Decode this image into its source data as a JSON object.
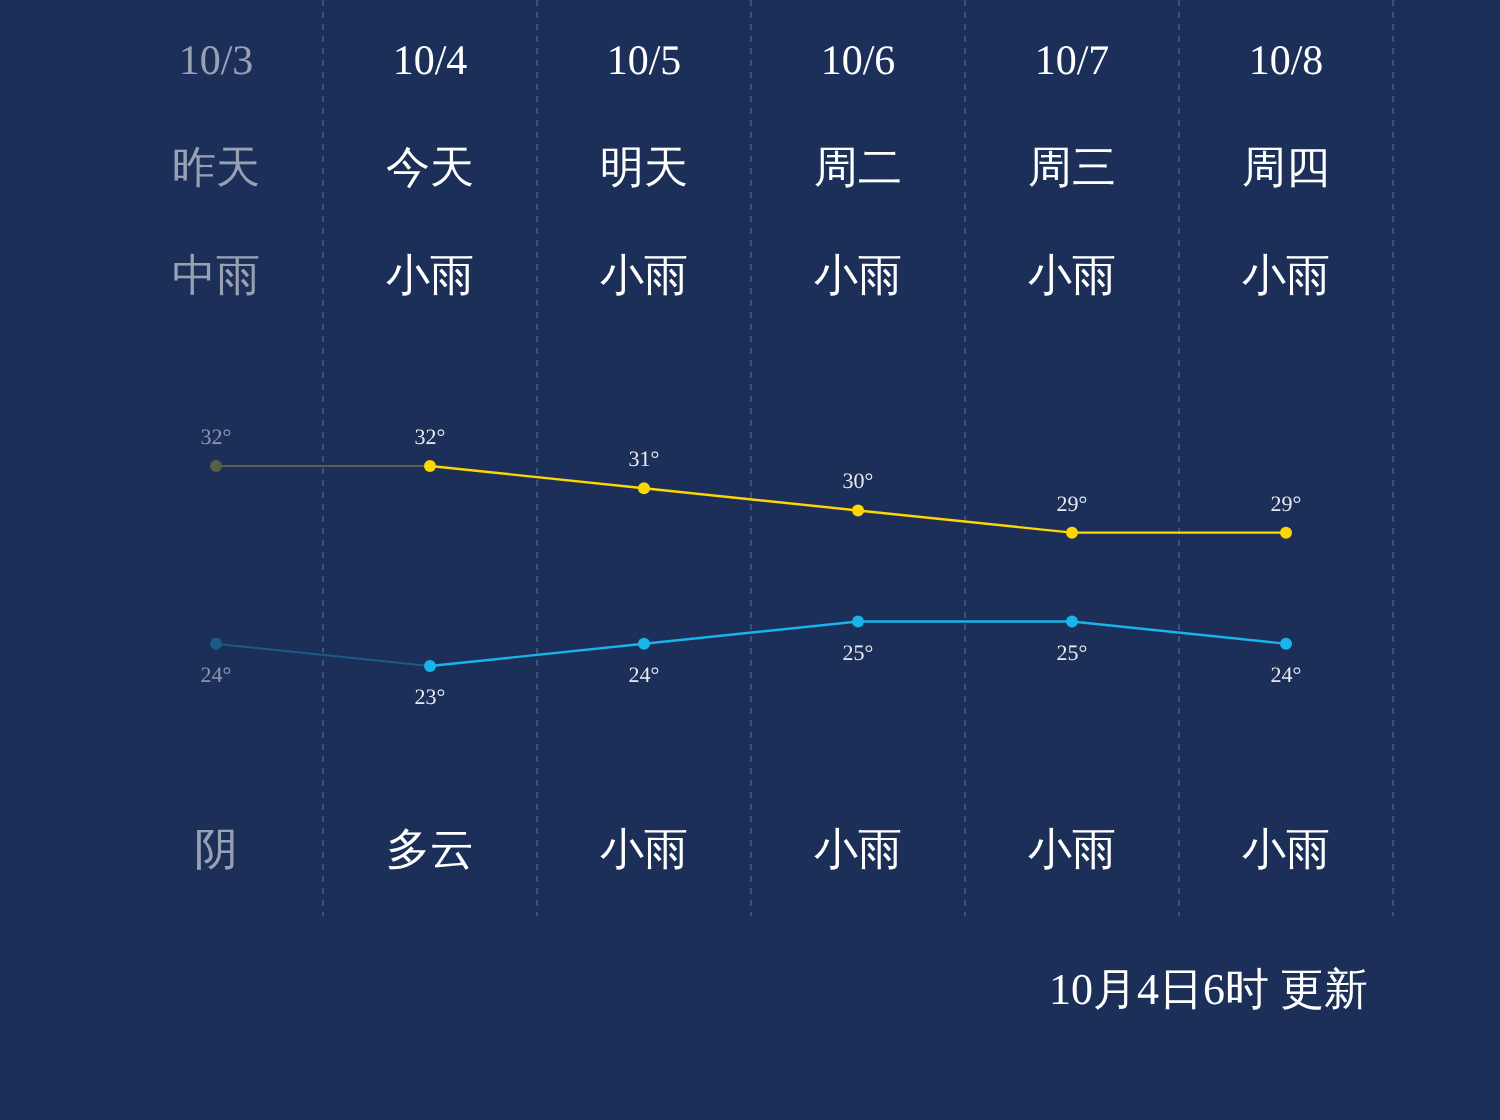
{
  "chart_data": {
    "type": "line",
    "categories": [
      "10/3",
      "10/4",
      "10/5",
      "10/6",
      "10/7",
      "10/8"
    ],
    "series": [
      {
        "color": "#ffd700",
        "colors": [
          "#556045",
          "#ffd700",
          "#ffd700",
          "#ffd700",
          "#ffd700",
          "#ffd700"
        ],
        "values": [
          32,
          32,
          31,
          30,
          29,
          29
        ],
        "value_labels": [
          "32°",
          "32°",
          "31°",
          "30°",
          "29°",
          "29°"
        ]
      },
      {
        "color": "#18b4ea",
        "colors": [
          "#1d5a88",
          "#18b4ea",
          "#18b4ea",
          "#18b4ea",
          "#18b4ea",
          "#18b4ea"
        ],
        "values": [
          24,
          23,
          24,
          25,
          25,
          24
        ],
        "value_labels": [
          "24°",
          "23°",
          "24°",
          "25°",
          "25°",
          "24°"
        ]
      }
    ],
    "marker": "circle",
    "grid": "x",
    "annotations": [
      "昨天",
      "今天",
      "明天",
      "周二",
      "周三",
      "周四",
      "中雨",
      "小雨",
      "小雨",
      "小雨",
      "小雨",
      "小雨",
      "阴",
      "多云",
      "小雨",
      "小雨",
      "小雨",
      "小雨",
      "10月4日6时 更新"
    ]
  }
}
